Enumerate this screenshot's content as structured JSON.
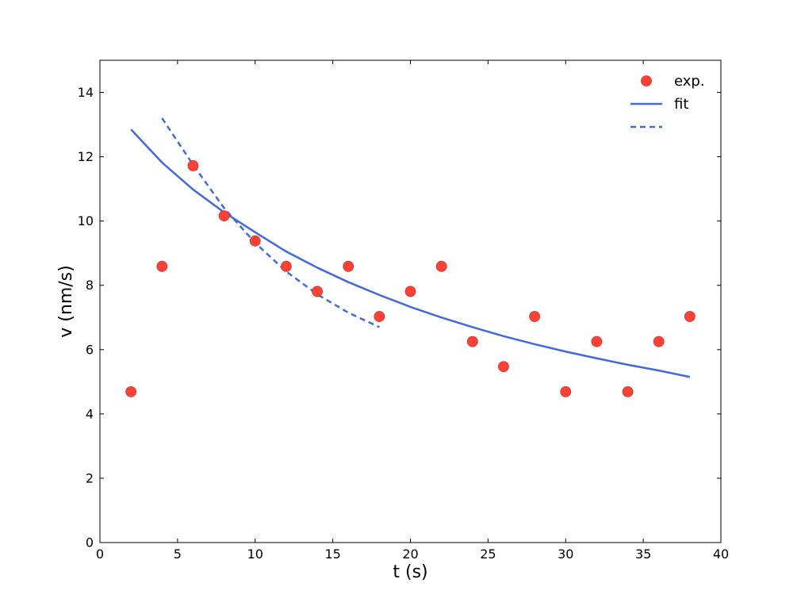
{
  "chart_data": {
    "type": "scatter",
    "title": "",
    "xlabel": "t (s)",
    "ylabel": "v (nm/s)",
    "xlim": [
      0,
      40
    ],
    "ylim": [
      0,
      15
    ],
    "xticks": [
      0,
      5,
      10,
      15,
      20,
      25,
      30,
      35,
      40
    ],
    "yticks": [
      0,
      2,
      4,
      6,
      8,
      10,
      12,
      14
    ],
    "grid": false,
    "legend_position": "top-right",
    "series": [
      {
        "name": "exp.",
        "kind": "markers",
        "color": "#ff4136",
        "x": [
          2,
          4,
          6,
          8,
          10,
          12,
          14,
          16,
          18,
          20,
          22,
          24,
          26,
          28,
          30,
          32,
          34,
          36,
          38
        ],
        "y": [
          4.69,
          8.59,
          11.72,
          10.16,
          9.38,
          8.59,
          7.81,
          8.59,
          7.03,
          7.81,
          8.59,
          6.25,
          5.47,
          7.03,
          4.69,
          6.25,
          4.69,
          6.25,
          7.03
        ]
      },
      {
        "name": "fit",
        "kind": "line",
        "color": "#4169e1",
        "x": [
          2,
          4,
          6,
          8,
          10,
          12,
          14,
          16,
          18,
          20,
          22,
          24,
          26,
          28,
          30,
          32,
          34,
          36,
          38
        ],
        "y": [
          12.85,
          11.82,
          10.98,
          10.27,
          9.65,
          9.05,
          8.55,
          8.1,
          7.7,
          7.33,
          7.0,
          6.7,
          6.42,
          6.17,
          5.94,
          5.73,
          5.53,
          5.35,
          5.15
        ]
      },
      {
        "name": "",
        "kind": "dashed-line",
        "color": "#4169e1",
        "x": [
          4,
          6,
          8,
          10,
          12,
          14,
          16,
          18
        ],
        "y": [
          13.2,
          11.75,
          10.4,
          9.32,
          8.43,
          7.72,
          7.15,
          6.7
        ]
      }
    ]
  }
}
